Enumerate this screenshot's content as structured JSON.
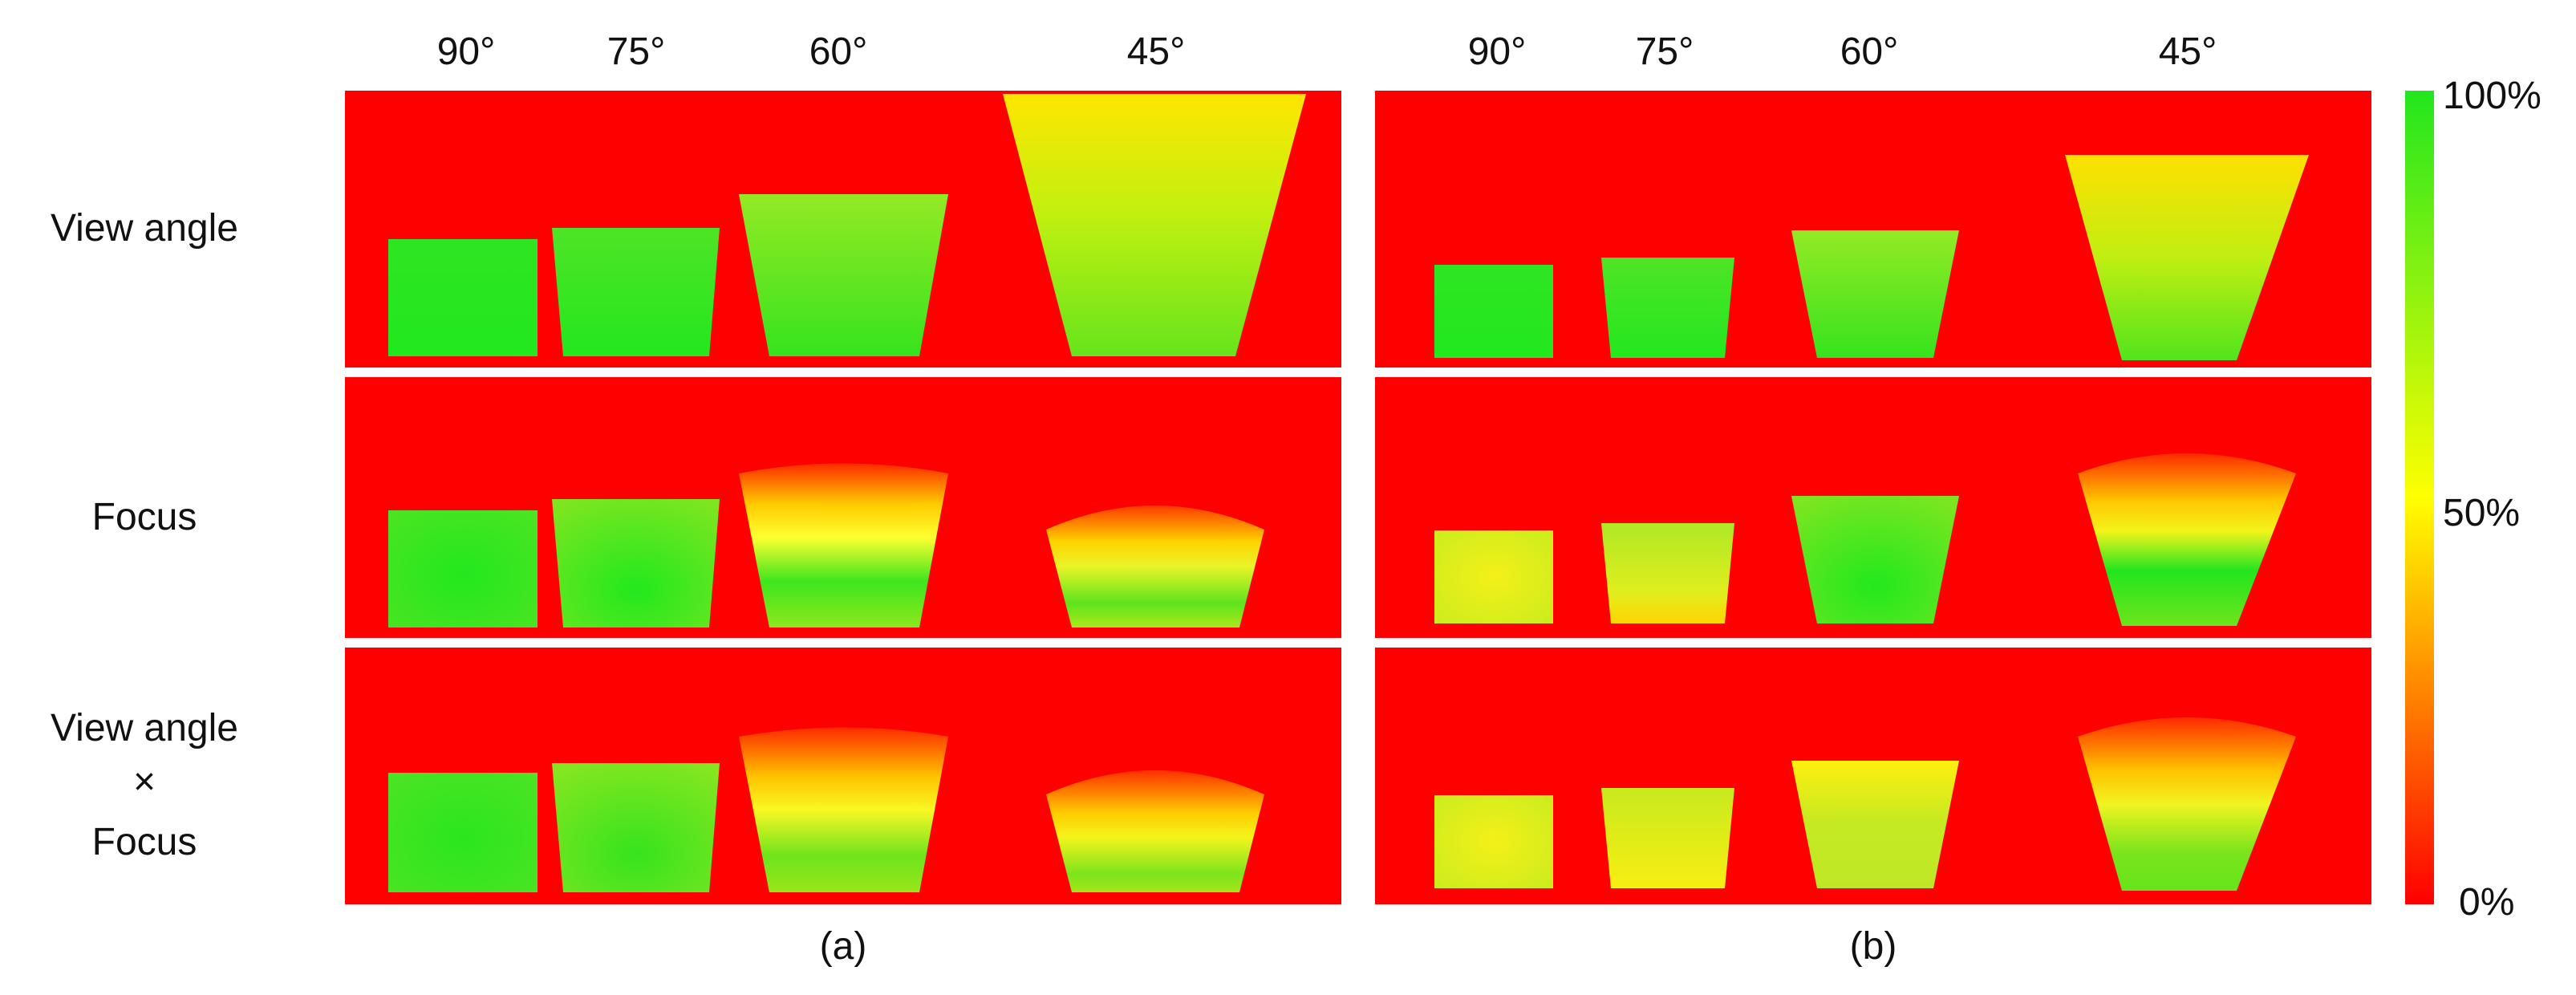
{
  "column_headers": {
    "a": [
      "90°",
      "75°",
      "60°",
      "45°"
    ],
    "b": [
      "90°",
      "75°",
      "60°",
      "45°"
    ]
  },
  "row_labels": {
    "view_angle": "View angle",
    "focus": "Focus",
    "combined_line1": "View angle",
    "combined_line2": "×",
    "combined_line3": "Focus"
  },
  "panel_labels": {
    "a": "(a)",
    "b": "(b)"
  },
  "colorbar": {
    "max_label": "100%",
    "mid_label": "50%",
    "min_label": "0%",
    "colors": {
      "high": "#22e61e",
      "mid": "#ffff00",
      "low": "#ff0000"
    }
  },
  "background_color": "#ff0000"
}
